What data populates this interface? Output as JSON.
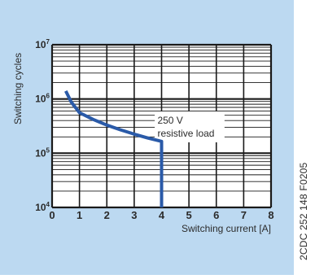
{
  "colors": {
    "panel_background": "#bcd9f1",
    "plot_background": "#ffffff",
    "grid": "#1a1a1a",
    "curve": "#2a5aa8",
    "text": "#2b2b2b"
  },
  "figure": {
    "side_code": "2CDC 252 148 F0205"
  },
  "chart_data": {
    "type": "line",
    "title": "",
    "xlabel": "Switching current [A]",
    "ylabel": "Switching cycles",
    "xlim": [
      0,
      8
    ],
    "ylim": [
      10000,
      10000000
    ],
    "y_scale": "log",
    "grid": true,
    "x_ticks": [
      "0",
      "1",
      "2",
      "3",
      "4",
      "5",
      "6",
      "7",
      "8"
    ],
    "y_ticks": [
      {
        "value": 10000,
        "base": "10",
        "exp": "4"
      },
      {
        "value": 100000,
        "base": "10",
        "exp": "5"
      },
      {
        "value": 1000000,
        "base": "10",
        "exp": "6"
      },
      {
        "value": 10000000,
        "base": "10",
        "exp": "7"
      }
    ],
    "annotation": [
      "250 V",
      "resistive load"
    ],
    "series": [
      {
        "points": [
          [
            0.5,
            1400000
          ],
          [
            0.7,
            880000
          ],
          [
            1.0,
            560000
          ],
          [
            1.5,
            420000
          ],
          [
            2.0,
            330000
          ],
          [
            2.5,
            270000
          ],
          [
            3.0,
            225000
          ],
          [
            3.5,
            190000
          ],
          [
            4.0,
            165000
          ],
          [
            4.0,
            10000
          ]
        ]
      }
    ]
  }
}
